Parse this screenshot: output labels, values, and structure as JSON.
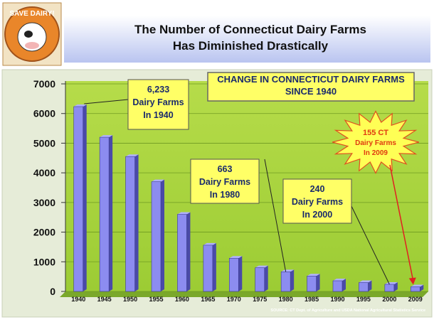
{
  "logo": "SAVE DAIRY!",
  "header": {
    "title_lines": [
      "The Number of Connecticut Dairy Farms",
      "Has Diminished Drastically"
    ]
  },
  "chart_data": {
    "type": "bar",
    "title": "CHANGE IN CONNECTICUT DAIRY FARMS SINCE 1940",
    "categories": [
      "1940",
      "1945",
      "1950",
      "1955",
      "1960",
      "1965",
      "1970",
      "1975",
      "1980",
      "1985",
      "1990",
      "1995",
      "2000",
      "2009"
    ],
    "values": [
      6233,
      5200,
      4550,
      3700,
      2600,
      1560,
      1120,
      800,
      663,
      520,
      360,
      300,
      240,
      155
    ],
    "color": "#8c8cf0",
    "ylim": [
      0,
      7000
    ],
    "yticks": [
      0,
      1000,
      2000,
      3000,
      4000,
      5000,
      6000,
      7000
    ],
    "grid": true,
    "annotations": [
      {
        "lines": [
          "6,233",
          "Dairy Farms",
          "In 1940"
        ]
      },
      {
        "lines": [
          "663",
          "Dairy Farms",
          "In 1980"
        ]
      },
      {
        "lines": [
          "240",
          "Dairy Farms",
          "In 2000"
        ]
      },
      {
        "lines": [
          "155 CT",
          "Dairy Farms",
          "In 2009"
        ]
      }
    ],
    "source": "SOURCE: CT Dept. of Agriculture and USDA National Agricultural Statistics Service"
  }
}
